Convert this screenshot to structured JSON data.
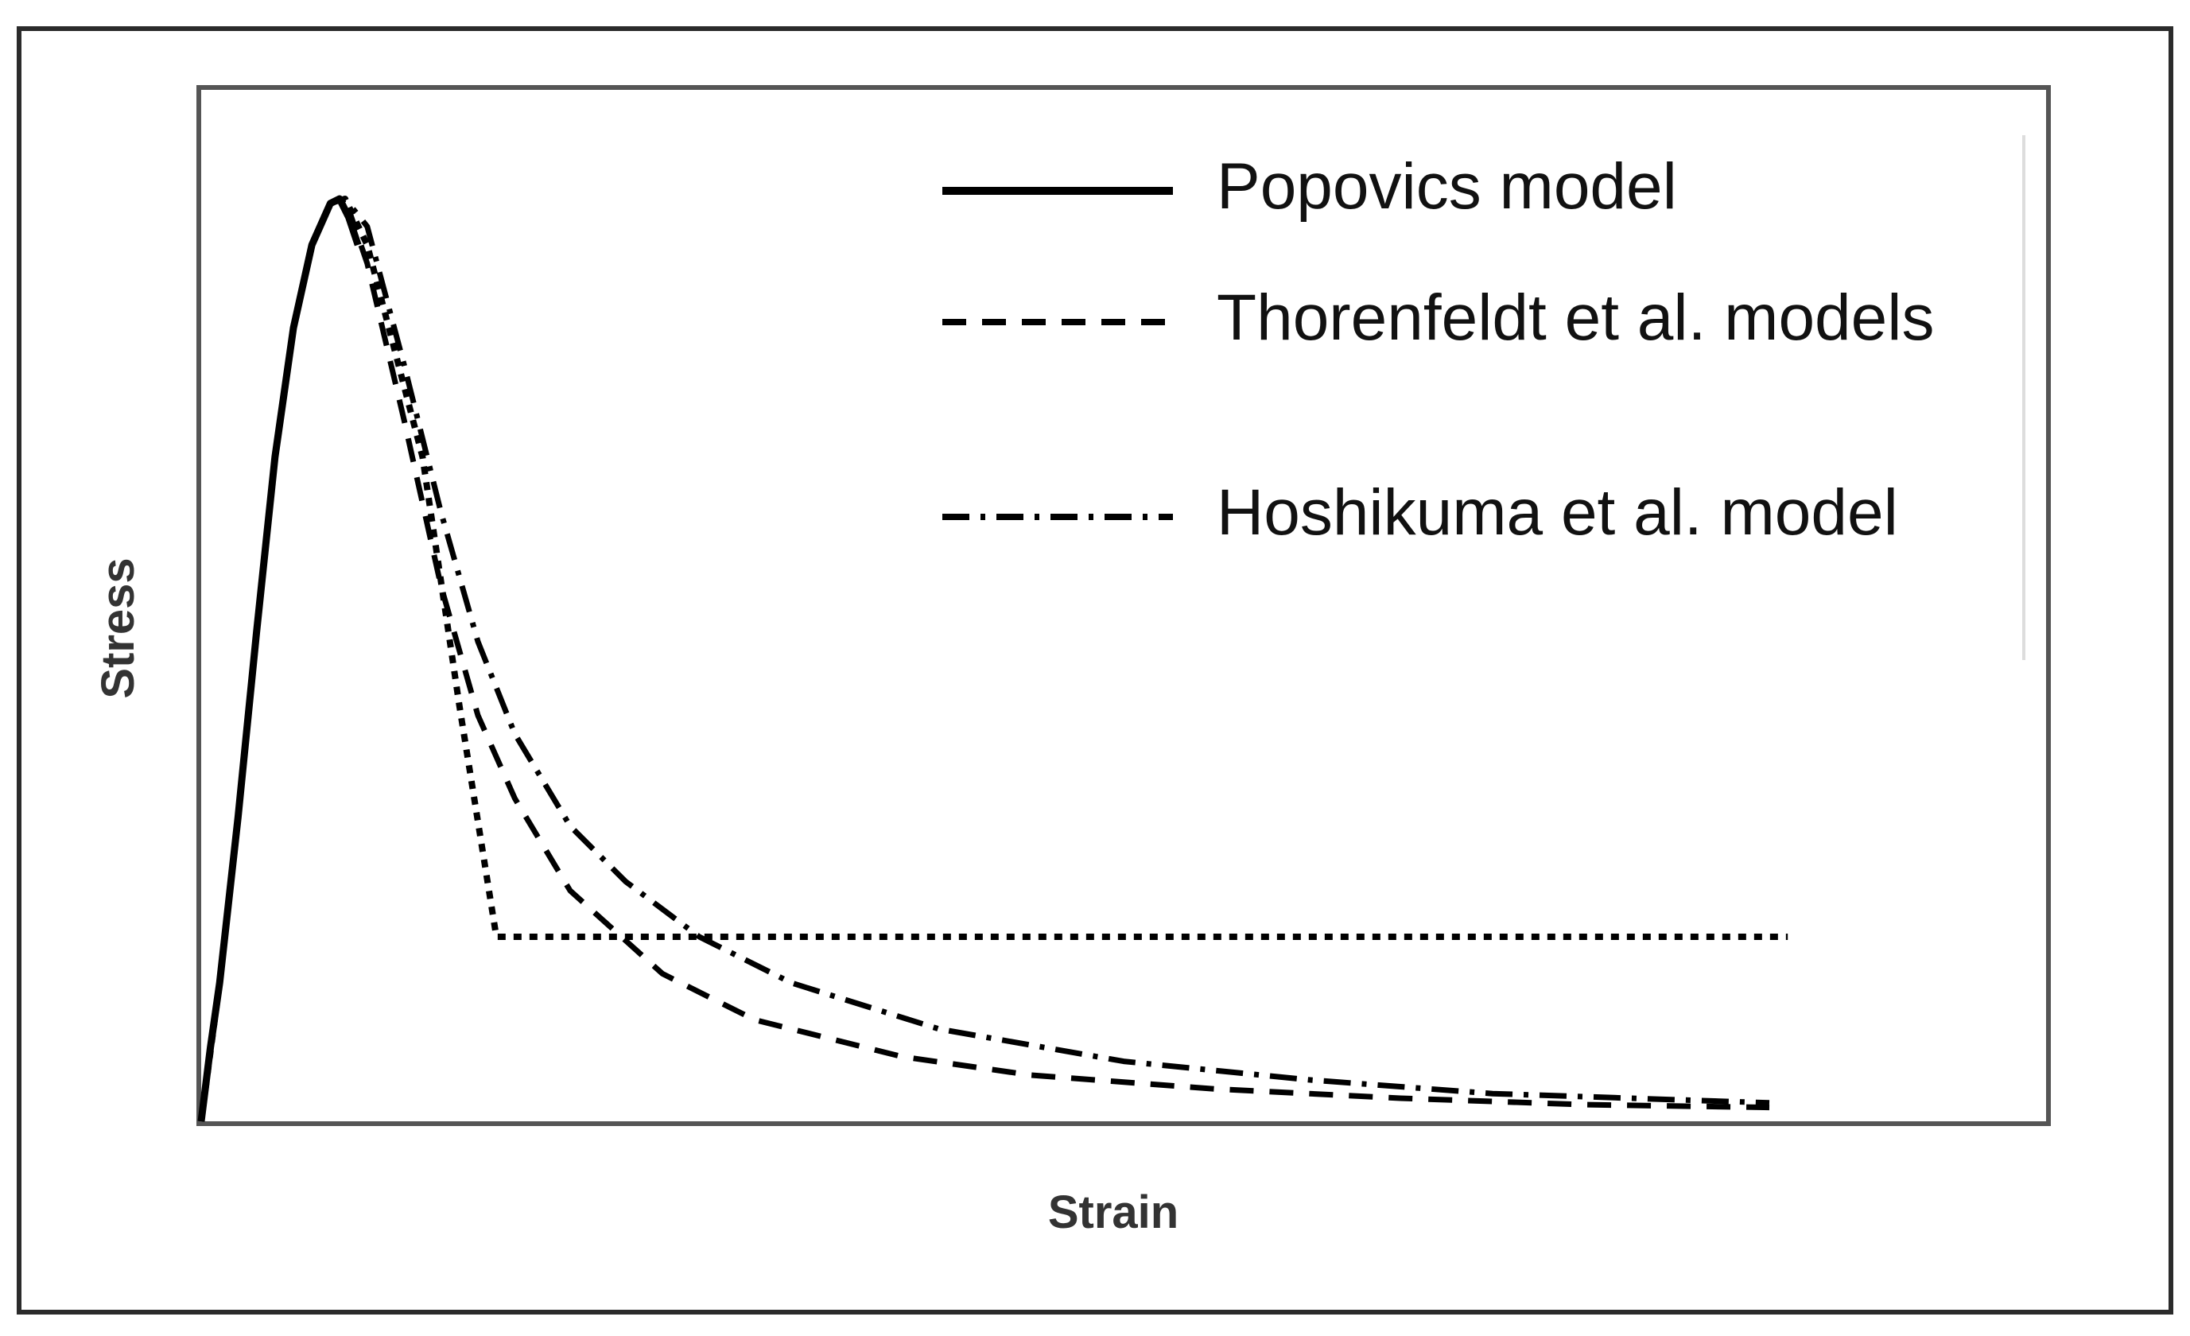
{
  "chart_data": {
    "type": "line",
    "title": "",
    "xlabel": "Strain",
    "ylabel": "Stress",
    "x_ticks": [],
    "y_ticks": [],
    "xlim": [
      0,
      1
    ],
    "ylim": [
      0,
      1
    ],
    "grid": false,
    "legend_position": "top-right",
    "series": [
      {
        "name": "Popovics model",
        "style": "solid",
        "color": "#000000",
        "x": [
          0.0,
          0.005,
          0.01,
          0.02,
          0.03,
          0.04,
          0.05,
          0.06,
          0.07,
          0.075,
          0.08,
          0.085
        ],
        "y": [
          0.0,
          0.08,
          0.15,
          0.33,
          0.53,
          0.72,
          0.86,
          0.95,
          0.995,
          1.0,
          0.98,
          0.95
        ]
      },
      {
        "name": "Thorenfeldt et al. models",
        "style": "dashed",
        "color": "#000000",
        "x": [
          0.0,
          0.01,
          0.02,
          0.03,
          0.04,
          0.05,
          0.06,
          0.07,
          0.078,
          0.09,
          0.11,
          0.13,
          0.15,
          0.17,
          0.2,
          0.25,
          0.3,
          0.38,
          0.45,
          0.55,
          0.65,
          0.75,
          0.85
        ],
        "y": [
          0.0,
          0.15,
          0.33,
          0.53,
          0.72,
          0.86,
          0.95,
          0.995,
          1.0,
          0.93,
          0.76,
          0.58,
          0.44,
          0.35,
          0.25,
          0.16,
          0.11,
          0.07,
          0.05,
          0.035,
          0.025,
          0.018,
          0.015
        ]
      },
      {
        "name": "Hoshikuma et al. model",
        "style": "dash-dot",
        "color": "#000000",
        "x": [
          0.0,
          0.01,
          0.02,
          0.03,
          0.04,
          0.05,
          0.06,
          0.07,
          0.078,
          0.09,
          0.11,
          0.13,
          0.15,
          0.17,
          0.2,
          0.23,
          0.27,
          0.32,
          0.4,
          0.5,
          0.6,
          0.7,
          0.85
        ],
        "y": [
          0.0,
          0.15,
          0.33,
          0.53,
          0.72,
          0.86,
          0.95,
          0.995,
          1.0,
          0.97,
          0.82,
          0.66,
          0.52,
          0.42,
          0.32,
          0.26,
          0.2,
          0.15,
          0.1,
          0.065,
          0.045,
          0.03,
          0.02
        ]
      },
      {
        "name": "",
        "style": "dotted",
        "color": "#000000",
        "x": [
          0.0,
          0.01,
          0.02,
          0.03,
          0.04,
          0.05,
          0.06,
          0.07,
          0.078,
          0.09,
          0.12,
          0.14,
          0.16,
          0.5,
          0.86
        ],
        "y": [
          0.0,
          0.15,
          0.33,
          0.53,
          0.72,
          0.86,
          0.95,
          0.995,
          1.0,
          0.95,
          0.72,
          0.45,
          0.2,
          0.2,
          0.2
        ]
      }
    ]
  }
}
